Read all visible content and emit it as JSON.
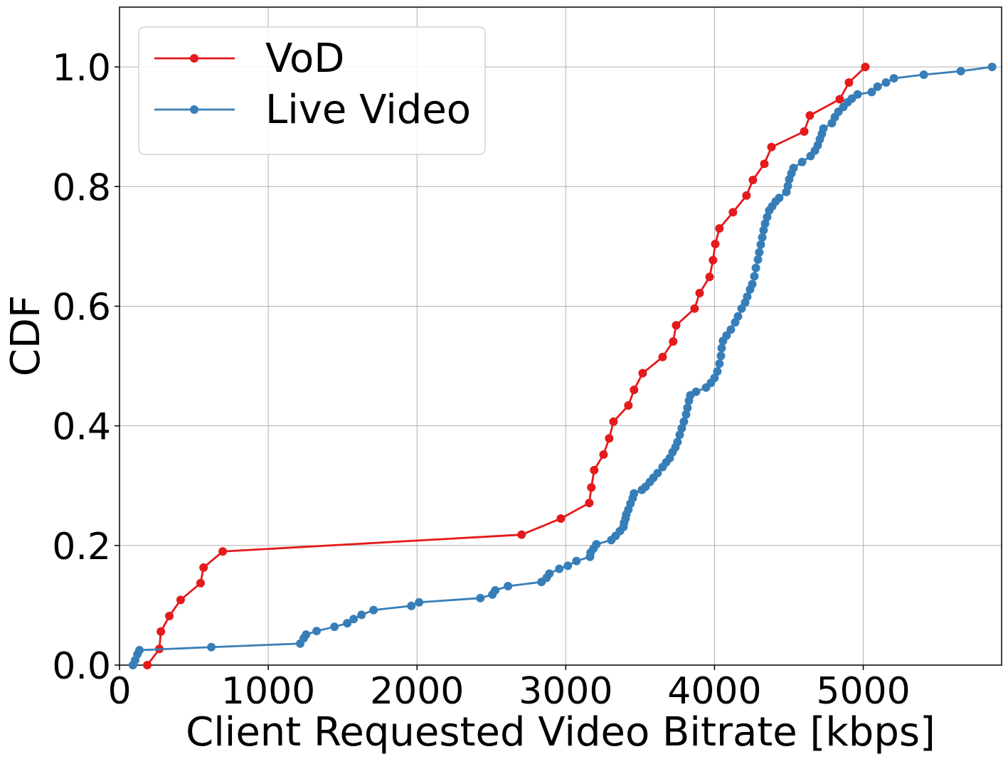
{
  "chart_data": {
    "type": "line",
    "x_label": "Client Requested Video Bitrate [kbps]",
    "y_label": "CDF",
    "xlim": [
      0,
      5930
    ],
    "ylim": [
      0,
      1.1
    ],
    "xticks": [
      0,
      1000,
      2000,
      3000,
      4000,
      5000
    ],
    "yticks": [
      {
        "value": 0,
        "label": "0.0"
      },
      0.2,
      0.4,
      0.6,
      0.8,
      {
        "value": 1,
        "label": "1.0"
      }
    ],
    "grid": true,
    "legend": "upper left",
    "series": [
      {
        "name": "VoD",
        "color": "#e41a1c",
        "x": [
          187,
          268,
          278,
          335,
          411,
          545,
          565,
          694,
          2703,
          2967,
          3158,
          3172,
          3191,
          3254,
          3292,
          3321,
          3421,
          3459,
          3517,
          3651,
          3722,
          3742,
          3866,
          3900,
          3967,
          3990,
          4005,
          4033,
          4124,
          4215,
          4258,
          4335,
          4383,
          4603,
          4641,
          4842,
          4904,
          5014
        ],
        "values": [
          0,
          0.027,
          0.056,
          0.082,
          0.109,
          0.137,
          0.163,
          0.19,
          0.218,
          0.245,
          0.271,
          0.297,
          0.326,
          0.352,
          0.379,
          0.407,
          0.434,
          0.46,
          0.488,
          0.515,
          0.541,
          0.568,
          0.596,
          0.622,
          0.649,
          0.677,
          0.704,
          0.73,
          0.757,
          0.785,
          0.811,
          0.838,
          0.866,
          0.892,
          0.919,
          0.946,
          0.974,
          1.0
        ]
      },
      {
        "name": "Live Video",
        "color": "#377eb8",
        "x": [
          90,
          105,
          120,
          134,
          617,
          1215,
          1239,
          1254,
          1325,
          1445,
          1531,
          1574,
          1627,
          1708,
          1962,
          2014,
          2426,
          2507,
          2526,
          2612,
          2837,
          2871,
          2890,
          2957,
          3014,
          3072,
          3163,
          3167,
          3187,
          3206,
          3306,
          3335,
          3364,
          3388,
          3392,
          3402,
          3407,
          3421,
          3435,
          3450,
          3459,
          3512,
          3536,
          3565,
          3589,
          3617,
          3651,
          3675,
          3699,
          3718,
          3737,
          3751,
          3766,
          3780,
          3794,
          3809,
          3818,
          3828,
          3837,
          3876,
          3943,
          3976,
          4000,
          4019,
          4033,
          4043,
          4048,
          4057,
          4081,
          4110,
          4139,
          4158,
          4182,
          4206,
          4220,
          4239,
          4254,
          4268,
          4278,
          4292,
          4301,
          4311,
          4321,
          4330,
          4340,
          4354,
          4368,
          4388,
          4411,
          4435,
          4483,
          4493,
          4502,
          4517,
          4531,
          4589,
          4646,
          4675,
          4694,
          4708,
          4722,
          4732,
          4789,
          4809,
          4833,
          4866,
          4895,
          4923,
          4962,
          5057,
          5096,
          5153,
          5206,
          5407,
          5656,
          5866
        ],
        "values": [
          0,
          0.008,
          0.018,
          0.025,
          0.03,
          0.036,
          0.045,
          0.051,
          0.057,
          0.064,
          0.07,
          0.077,
          0.084,
          0.092,
          0.099,
          0.105,
          0.112,
          0.118,
          0.125,
          0.132,
          0.139,
          0.146,
          0.153,
          0.161,
          0.166,
          0.174,
          0.181,
          0.188,
          0.195,
          0.202,
          0.209,
          0.216,
          0.224,
          0.231,
          0.238,
          0.245,
          0.252,
          0.26,
          0.27,
          0.279,
          0.287,
          0.293,
          0.298,
          0.306,
          0.313,
          0.321,
          0.331,
          0.339,
          0.346,
          0.356,
          0.364,
          0.373,
          0.385,
          0.396,
          0.407,
          0.419,
          0.43,
          0.442,
          0.451,
          0.457,
          0.464,
          0.472,
          0.48,
          0.491,
          0.504,
          0.517,
          0.53,
          0.542,
          0.551,
          0.561,
          0.573,
          0.583,
          0.596,
          0.606,
          0.616,
          0.628,
          0.637,
          0.65,
          0.664,
          0.678,
          0.69,
          0.703,
          0.715,
          0.727,
          0.738,
          0.749,
          0.76,
          0.767,
          0.775,
          0.781,
          0.791,
          0.801,
          0.812,
          0.822,
          0.831,
          0.841,
          0.851,
          0.86,
          0.869,
          0.879,
          0.888,
          0.897,
          0.906,
          0.916,
          0.925,
          0.933,
          0.941,
          0.947,
          0.954,
          0.958,
          0.967,
          0.974,
          0.981,
          0.987,
          0.993,
          1.0
        ]
      }
    ]
  }
}
